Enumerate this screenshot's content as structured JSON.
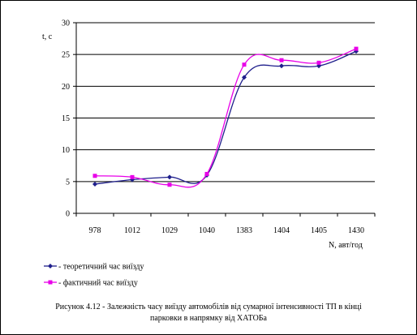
{
  "chart_data": {
    "type": "line",
    "ylabel": "t, c",
    "xlabel": "N, авт/год",
    "ylim": [
      0,
      30
    ],
    "yticks": [
      "0",
      "5",
      "10",
      "15",
      "20",
      "25",
      "30"
    ],
    "categories": [
      "978",
      "1012",
      "1029",
      "1040",
      "1383",
      "1404",
      "1405",
      "1430"
    ],
    "grid": "horizontal",
    "legend_position": "bottom-left",
    "series": [
      {
        "name": "- теоретичний час виїзду",
        "color": "#1f1f8c",
        "marker": "diamond",
        "values": [
          4.6,
          5.3,
          5.7,
          6.0,
          21.4,
          23.2,
          23.2,
          25.5
        ]
      },
      {
        "name": "- фактичний час виїзду",
        "color": "#e800e8",
        "marker": "square",
        "values": [
          5.9,
          5.7,
          4.5,
          6.2,
          23.4,
          24.1,
          23.7,
          25.9
        ]
      }
    ]
  },
  "caption": {
    "line1": "Рисунок 4.12 - Залежність часу виїзду автомобілів від сумарної  інтенсивності ТП в кінці",
    "line2": "парковки в напрямку від ХАТОБа"
  }
}
